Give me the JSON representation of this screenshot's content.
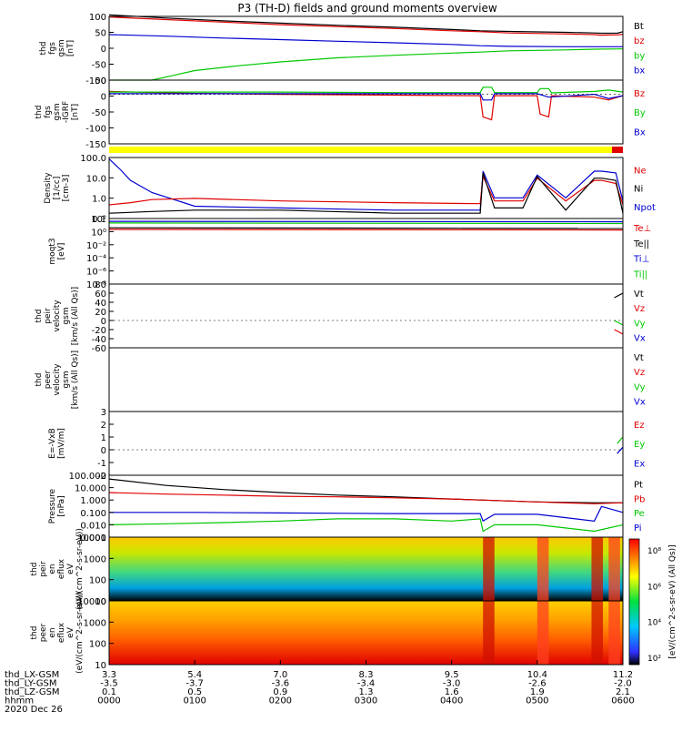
{
  "title": "P3 (TH-D) fields and ground moments overview",
  "colors": {
    "black": "#000000",
    "red": "#e00000",
    "green": "#00c800",
    "blue": "#0000d0",
    "yellow": "#ffff00"
  },
  "chart_data": [
    {
      "type": "line",
      "panel": "fgs",
      "ylabel": [
        "thd",
        "fgs",
        "gsm",
        "[nT]"
      ],
      "ylim": [
        -100,
        100
      ],
      "yticks": [
        "100",
        "50",
        "0",
        "-50",
        "-100"
      ],
      "legend": [
        {
          "name": "Bt",
          "color": "black"
        },
        {
          "name": "bz",
          "color": "red"
        },
        {
          "name": "by",
          "color": "green"
        },
        {
          "name": "bx",
          "color": "blue"
        }
      ],
      "series": [
        {
          "name": "Bt",
          "x": [
            0,
            40,
            80,
            120,
            160,
            200,
            240,
            260,
            280,
            320,
            340,
            344,
            356,
            360
          ],
          "y": [
            105,
            95,
            86,
            79,
            72,
            66,
            59,
            55,
            53,
            50,
            48,
            47,
            47,
            52
          ]
        },
        {
          "name": "bz",
          "x": [
            0,
            40,
            80,
            120,
            160,
            200,
            240,
            260,
            280,
            320,
            340,
            344,
            356,
            360
          ],
          "y": [
            98,
            90,
            82,
            74,
            68,
            62,
            55,
            52,
            48,
            45,
            43,
            41,
            42,
            44
          ]
        },
        {
          "name": "by",
          "x": [
            0,
            30,
            45,
            60,
            90,
            120,
            160,
            200,
            240,
            260,
            280,
            320,
            340,
            360
          ],
          "y": [
            -100,
            -100,
            -85,
            -70,
            -55,
            -43,
            -30,
            -22,
            -15,
            -12,
            -8,
            -5,
            -3,
            -2
          ]
        },
        {
          "name": "bx",
          "x": [
            0,
            40,
            80,
            120,
            160,
            200,
            240,
            260,
            280,
            320,
            340,
            360
          ],
          "y": [
            43,
            38,
            32,
            27,
            22,
            17,
            12,
            8,
            6,
            5,
            5,
            5
          ]
        }
      ]
    },
    {
      "type": "line",
      "panel": "fgs_dsl",
      "ylabel": [
        "thd",
        "fgs",
        "gsm",
        "-IGRF",
        "[nT]"
      ],
      "ylim": [
        -175,
        50
      ],
      "yticks": [
        "50",
        "0",
        "-50",
        "-100",
        "-150"
      ],
      "legend": [
        {
          "name": "Bz",
          "color": "red"
        },
        {
          "name": "By",
          "color": "green"
        },
        {
          "name": "Bx",
          "color": "blue"
        }
      ],
      "series": [
        {
          "name": "Bz",
          "x": [
            0,
            60,
            120,
            200,
            260,
            262,
            268,
            270,
            300,
            302,
            308,
            310,
            340,
            350,
            360
          ],
          "y": [
            10,
            3,
            0,
            -3,
            -5,
            -80,
            -90,
            -5,
            -5,
            -70,
            -80,
            -5,
            -10,
            -20,
            -5
          ]
        },
        {
          "name": "By",
          "x": [
            0,
            60,
            120,
            200,
            260,
            262,
            268,
            270,
            300,
            302,
            308,
            310,
            340,
            350,
            360
          ],
          "y": [
            8,
            8,
            8,
            6,
            6,
            25,
            25,
            6,
            6,
            20,
            20,
            5,
            10,
            15,
            8
          ]
        },
        {
          "name": "Bx",
          "x": [
            0,
            60,
            120,
            200,
            260,
            262,
            268,
            270,
            300,
            308,
            340,
            350,
            360
          ],
          "y": [
            2,
            2,
            2,
            2,
            2,
            -20,
            -20,
            2,
            2,
            -10,
            0,
            -15,
            -5
          ]
        }
      ]
    },
    {
      "type": "line",
      "panel": "density",
      "ylabel": [
        "Density",
        "[1/cc]",
        "[cm-3]"
      ],
      "log": true,
      "ylim": [
        0.1,
        300
      ],
      "yticks": [
        "100.0",
        "10.0",
        "1.0",
        "0.1"
      ],
      "legend": [
        {
          "name": "Ne",
          "color": "red"
        },
        {
          "name": "Ni",
          "color": "black"
        },
        {
          "name": "Npot",
          "color": "blue"
        }
      ],
      "series": [
        {
          "name": "Npot",
          "x": [
            0,
            8,
            15,
            30,
            60,
            120,
            200,
            260,
            262,
            270,
            290,
            300,
            320,
            340,
            345,
            355,
            360
          ],
          "y": [
            250,
            60,
            15,
            3,
            0.5,
            0.4,
            0.3,
            0.3,
            50,
            1.5,
            1.5,
            30,
            1.5,
            50,
            50,
            40,
            1.0
          ]
        },
        {
          "name": "Ne",
          "x": [
            0,
            15,
            30,
            60,
            120,
            200,
            260,
            262,
            270,
            290,
            300,
            320,
            340,
            345,
            355,
            360
          ],
          "y": [
            0.6,
            0.8,
            1.2,
            1.4,
            1.0,
            0.8,
            0.7,
            25,
            1.0,
            1.0,
            20,
            1.0,
            15,
            15,
            10,
            0.6
          ]
        },
        {
          "name": "Ni",
          "x": [
            0,
            30,
            60,
            120,
            200,
            260,
            262,
            270,
            290,
            300,
            320,
            340,
            345,
            355,
            360
          ],
          "y": [
            0.2,
            0.25,
            0.3,
            0.3,
            0.2,
            0.2,
            40,
            0.4,
            0.4,
            25,
            0.3,
            20,
            20,
            15,
            0.2
          ]
        }
      ]
    },
    {
      "type": "line",
      "panel": "temperature",
      "ylabel": [
        "moqt3",
        "[eV]"
      ],
      "log": true,
      "ylim": [
        1e-08,
        10000
      ],
      "yticks": [
        "10²",
        "10⁰",
        "10⁻²",
        "10⁻⁴",
        "10⁻⁶",
        "10⁻⁸"
      ],
      "legend": [
        {
          "name": "Te⊥",
          "color": "red"
        },
        {
          "name": "Te||",
          "color": "black"
        },
        {
          "name": "Ti⊥",
          "color": "blue"
        },
        {
          "name": "Ti||",
          "color": "green"
        }
      ],
      "series": [
        {
          "name": "Ti⊥",
          "x": [
            0,
            360
          ],
          "y": [
            3000,
            2500
          ]
        },
        {
          "name": "Ti||",
          "x": [
            0,
            360
          ],
          "y": [
            1500,
            1200
          ]
        },
        {
          "name": "Te||",
          "x": [
            0,
            360
          ],
          "y": [
            200,
            150
          ]
        },
        {
          "name": "Te⊥",
          "x": [
            0,
            360
          ],
          "y": [
            100,
            80
          ]
        }
      ]
    },
    {
      "type": "line",
      "panel": "peir_velocity",
      "ylabel": [
        "thd",
        "peir",
        "velocity",
        "gsm",
        "[km/s (All Qs)]"
      ],
      "ylim": [
        -60,
        80
      ],
      "yticks": [
        "80",
        "60",
        "40",
        "20",
        "0",
        "-20",
        "-40",
        "-60"
      ],
      "legend": [
        {
          "name": "Vt",
          "color": "black"
        },
        {
          "name": "Vz",
          "color": "red"
        },
        {
          "name": "Vy",
          "color": "green"
        },
        {
          "name": "Vx",
          "color": "blue"
        }
      ],
      "series": [
        {
          "name": "Vt",
          "x": [
            354,
            360
          ],
          "y": [
            50,
            60
          ]
        },
        {
          "name": "Vy",
          "x": [
            354,
            360
          ],
          "y": [
            0,
            -10
          ]
        },
        {
          "name": "Vz",
          "x": [
            354,
            360
          ],
          "y": [
            -20,
            -30
          ]
        }
      ]
    },
    {
      "type": "line",
      "panel": "peer_velocity",
      "ylabel": [
        "thd",
        "peer",
        "velocity",
        "gsm",
        "[km/s (All Qs)]"
      ],
      "ylim": [
        0,
        1
      ],
      "yticks": [],
      "legend": [
        {
          "name": "Vt",
          "color": "black"
        },
        {
          "name": "Vz",
          "color": "red"
        },
        {
          "name": "Vy",
          "color": "green"
        },
        {
          "name": "Vx",
          "color": "blue"
        }
      ],
      "series": []
    },
    {
      "type": "line",
      "panel": "efield",
      "ylabel": [
        "E=-VxB",
        "[mV/m]"
      ],
      "ylim": [
        -2,
        3
      ],
      "yticks": [
        "3",
        "2",
        "1",
        "0",
        "-1",
        "-2"
      ],
      "legend": [
        {
          "name": "Ez",
          "color": "red"
        },
        {
          "name": "Ey",
          "color": "green"
        },
        {
          "name": "Ex",
          "color": "blue"
        }
      ],
      "series": [
        {
          "name": "Ey",
          "x": [
            356,
            360
          ],
          "y": [
            0.5,
            1.0
          ]
        },
        {
          "name": "Ex",
          "x": [
            356,
            360
          ],
          "y": [
            -0.3,
            0.2
          ]
        }
      ]
    },
    {
      "type": "line",
      "panel": "pressure",
      "ylabel": [
        "Pressure",
        "[nPa]"
      ],
      "log": true,
      "ylim": [
        0.001,
        100
      ],
      "yticks": [
        "100.000",
        "10.000",
        "1.000",
        "0.100",
        "0.010",
        "0.001"
      ],
      "legend": [
        {
          "name": "Pt",
          "color": "black"
        },
        {
          "name": "Pb",
          "color": "red"
        },
        {
          "name": "Pe",
          "color": "green"
        },
        {
          "name": "Pi",
          "color": "blue"
        }
      ],
      "series": [
        {
          "name": "Pt",
          "x": [
            0,
            40,
            80,
            120,
            160,
            200,
            240,
            260,
            300,
            340,
            360
          ],
          "y": [
            50,
            15,
            7,
            4,
            2.5,
            1.8,
            1.2,
            1.0,
            0.7,
            0.6,
            0.6
          ]
        },
        {
          "name": "Pb",
          "x": [
            0,
            40,
            80,
            120,
            160,
            200,
            240,
            260,
            300,
            340,
            360
          ],
          "y": [
            4,
            3,
            2.5,
            2,
            1.8,
            1.5,
            1.2,
            1.0,
            0.7,
            0.5,
            0.6
          ]
        },
        {
          "name": "Pi",
          "x": [
            0,
            60,
            120,
            200,
            260,
            262,
            270,
            300,
            340,
            345,
            360
          ],
          "y": [
            0.1,
            0.1,
            0.09,
            0.08,
            0.08,
            0.02,
            0.07,
            0.07,
            0.02,
            0.3,
            0.1
          ]
        },
        {
          "name": "Pe",
          "x": [
            0,
            40,
            80,
            120,
            160,
            200,
            240,
            260,
            262,
            270,
            300,
            340,
            360
          ],
          "y": [
            0.01,
            0.012,
            0.015,
            0.02,
            0.03,
            0.03,
            0.02,
            0.03,
            0.003,
            0.01,
            0.01,
            0.003,
            0.01
          ]
        }
      ]
    },
    {
      "type": "heatmap",
      "panel": "peir_spectrogram",
      "ylabel": [
        "thd",
        "peir",
        "en",
        "eflux",
        "eV",
        "(eV/(cm^2-s-sr-eV))"
      ],
      "log": true,
      "ylim": [
        5,
        25000
      ],
      "yticks": [
        "10000",
        "1000",
        "100",
        "10"
      ]
    },
    {
      "type": "heatmap",
      "panel": "peer_spectrogram",
      "ylabel": [
        "thd",
        "peer",
        "en",
        "eflux",
        "eV",
        "(eV/(cm^2-s-sr-eV))"
      ],
      "log": true,
      "ylim": [
        5,
        25000
      ],
      "yticks": [
        "10000",
        "1000",
        "100",
        "10"
      ],
      "colorbar": {
        "label": "[eV/(cm^2-s-sr-eV) (All Qs)]",
        "ticks": [
          "10⁸",
          "10⁶",
          "10⁴",
          "10²"
        ]
      }
    }
  ],
  "xaxis": {
    "rows": [
      {
        "label": "thd_LX-GSM",
        "values": [
          "3.3",
          "5.4",
          "7.0",
          "8.3",
          "9.5",
          "10.4",
          "11.2"
        ]
      },
      {
        "label": "thd_LY-GSM",
        "values": [
          "-3.5",
          "-3.7",
          "-3.6",
          "-3.4",
          "-3.0",
          "-2.6",
          "-2.0"
        ]
      },
      {
        "label": "thd_LZ-GSM",
        "values": [
          "0.1",
          "0.5",
          "0.9",
          "1.3",
          "1.6",
          "1.9",
          "2.1"
        ]
      },
      {
        "label": "hhmm",
        "values": [
          "0000",
          "0100",
          "0200",
          "0300",
          "0400",
          "0500",
          "0600"
        ]
      }
    ],
    "date": "2020 Dec 26"
  }
}
